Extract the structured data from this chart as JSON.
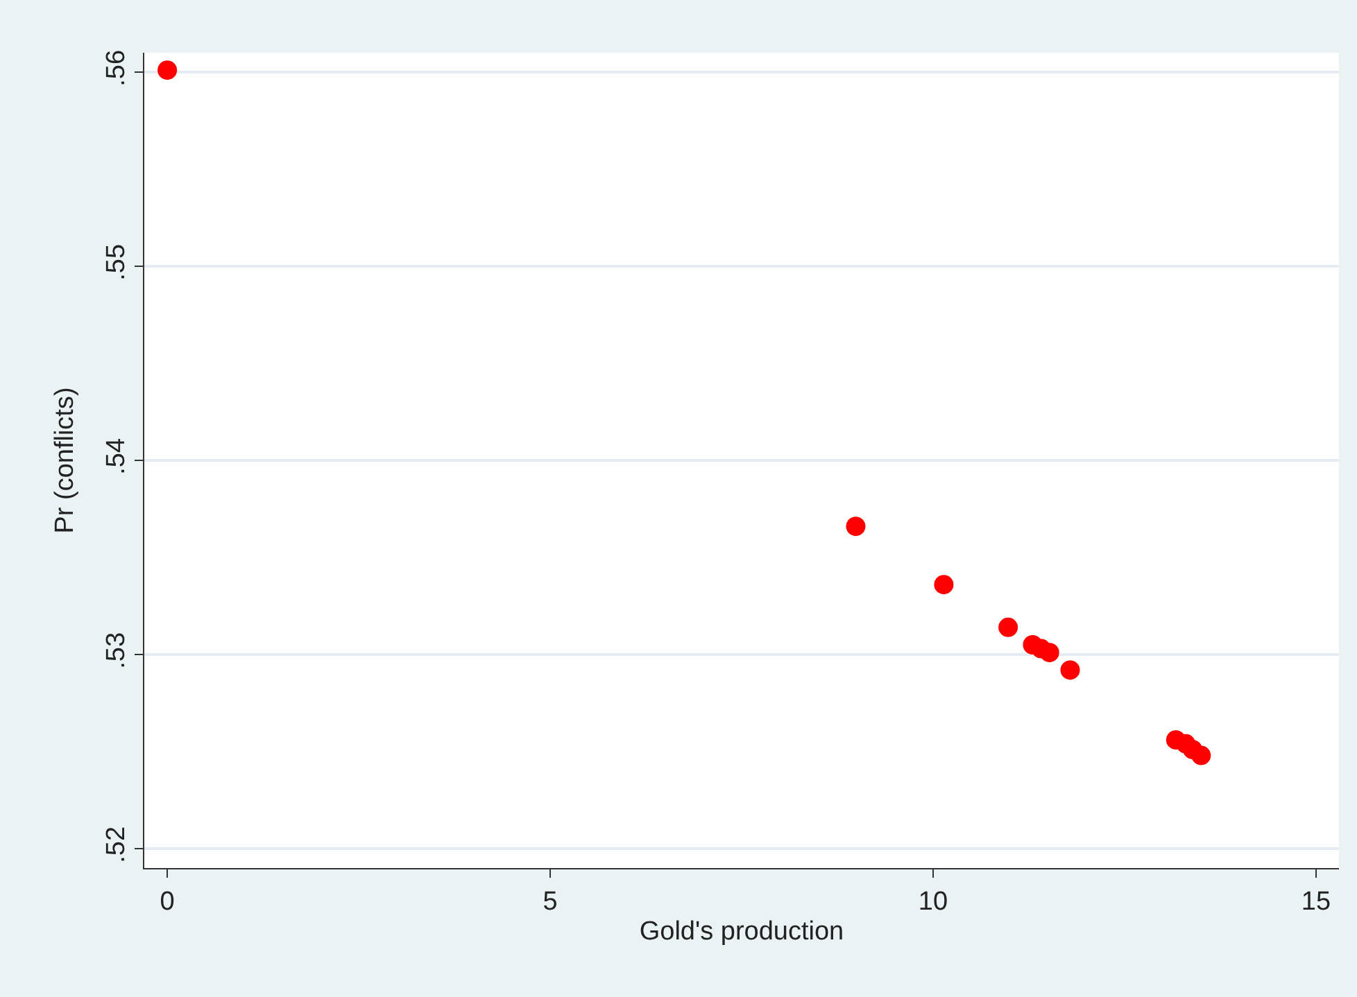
{
  "chart_data": {
    "type": "scatter",
    "xlabel": "Gold's production",
    "ylabel": "Pr (conflicts)",
    "x": [
      0,
      8.99,
      10.14,
      10.98,
      11.3,
      11.41,
      11.52,
      11.79,
      13.17,
      13.3,
      13.39,
      13.5
    ],
    "series": [
      {
        "color": "#ff0000",
        "values": [
          0.5601,
          0.5366,
          0.5336,
          0.5314,
          0.5305,
          0.5303,
          0.5301,
          0.5292,
          0.5256,
          0.5254,
          0.5251,
          0.5248
        ]
      }
    ],
    "xlim": [
      -0.3,
      15.3
    ],
    "ylim": [
      0.519,
      0.561
    ],
    "xticks": [
      0,
      5,
      10,
      15
    ],
    "yticks": [
      {
        "value": 0.52,
        "label": ".52"
      },
      {
        "value": 0.53,
        "label": ".53"
      },
      {
        "value": 0.54,
        "label": ".54"
      },
      {
        "value": 0.55,
        "label": ".55"
      },
      {
        "value": 0.56,
        "label": ".56"
      }
    ],
    "grid": "y",
    "marker": "circle"
  }
}
